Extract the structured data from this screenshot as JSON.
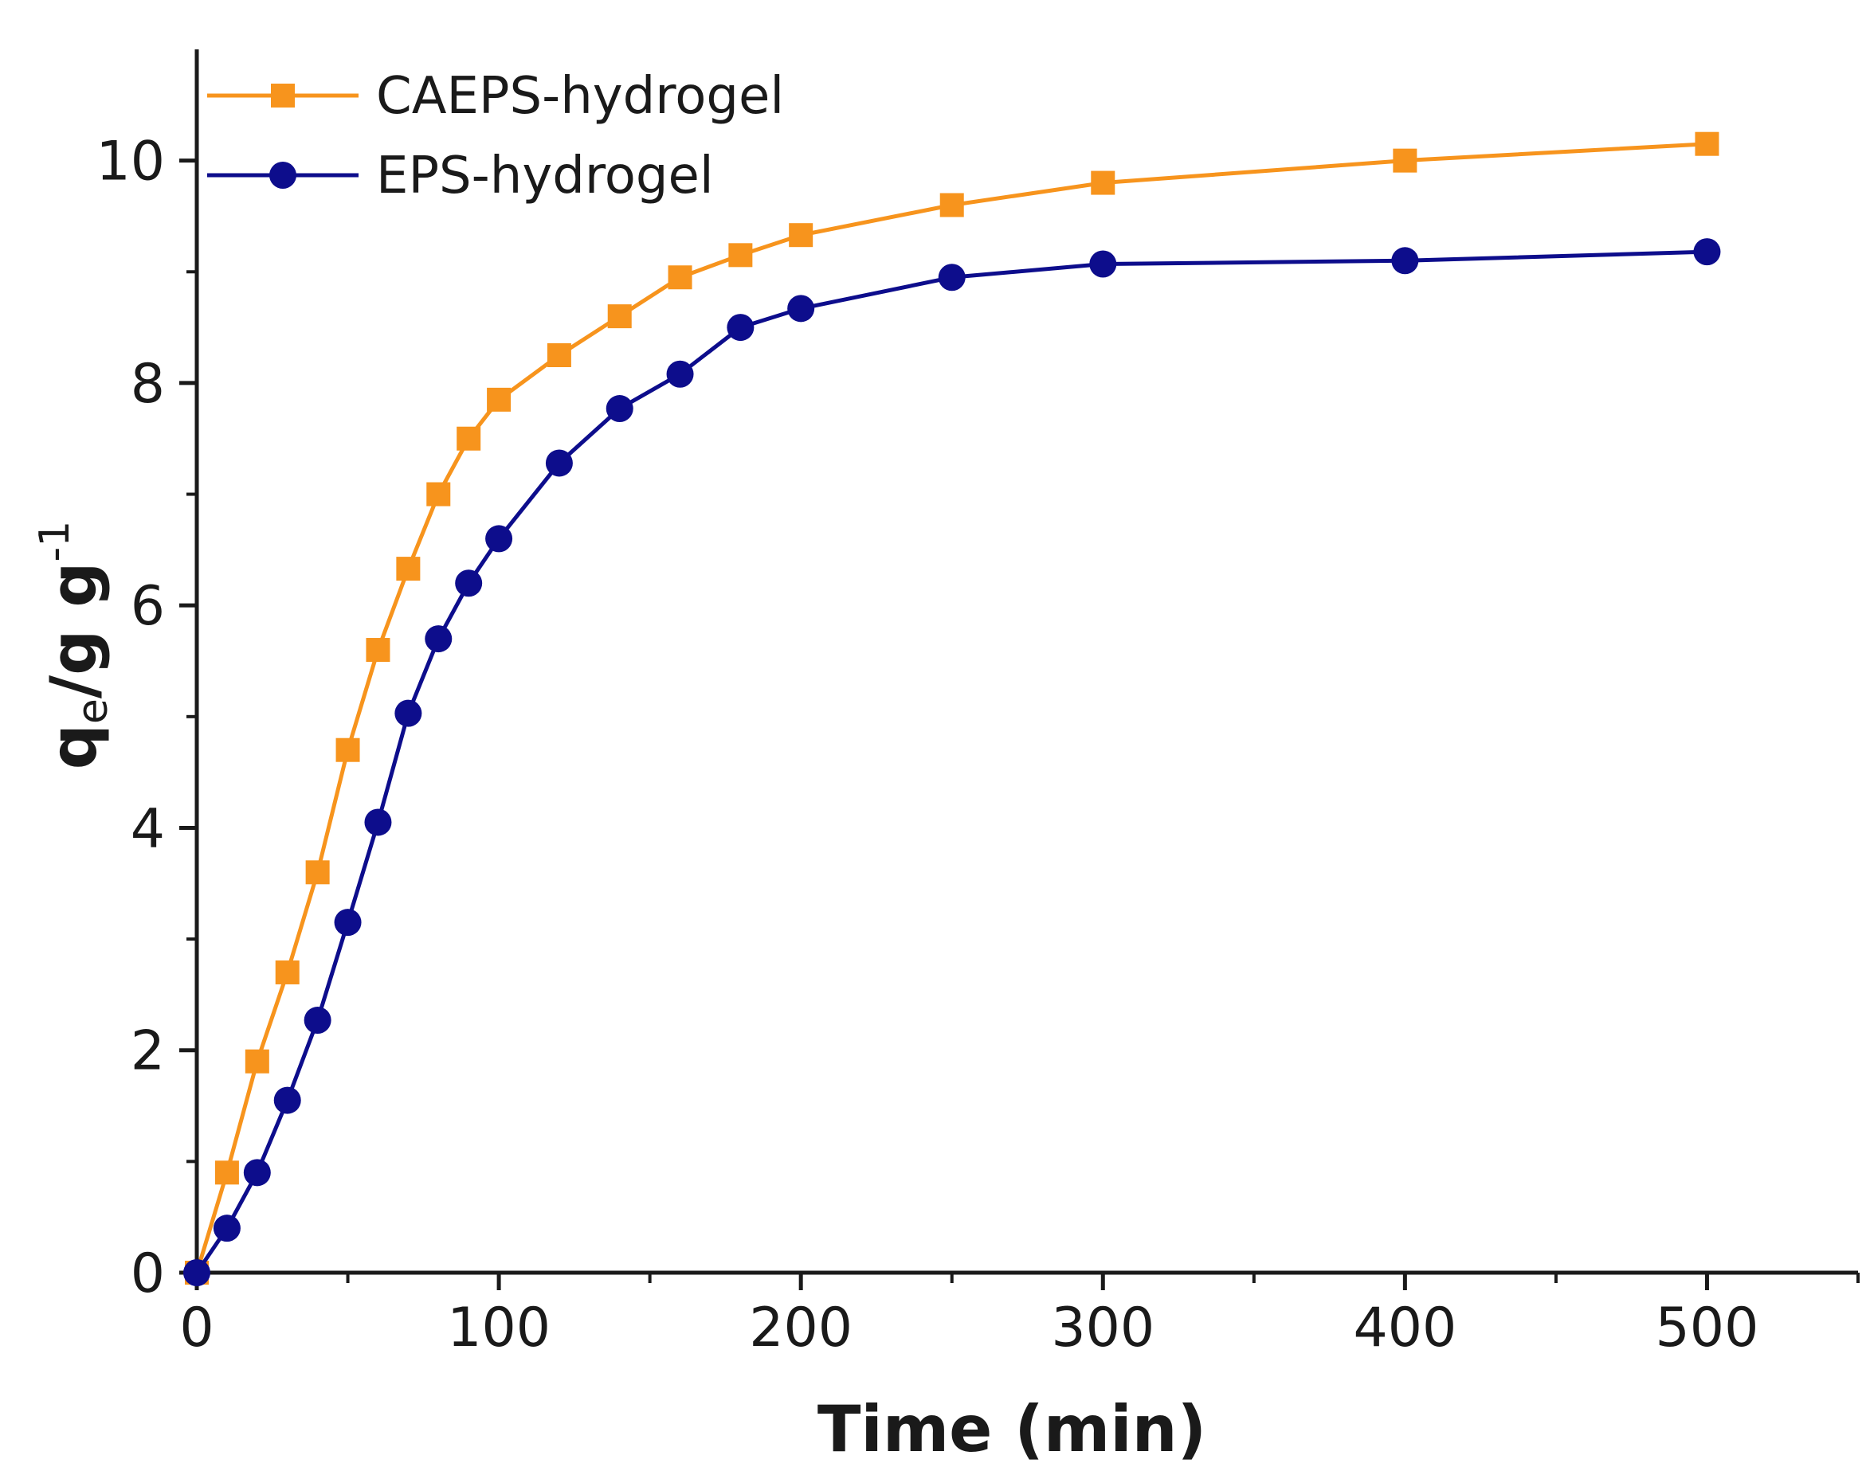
{
  "chart_data": {
    "type": "line",
    "title": "",
    "xlabel": "Time (min)",
    "ylabel": {
      "main": "q",
      "sub": "e",
      "unit": "/g g",
      "sup": "-1"
    },
    "xlim": [
      0,
      550
    ],
    "ylim": [
      0,
      11
    ],
    "xticks": [
      0,
      100,
      200,
      300,
      400,
      500
    ],
    "xminor": [
      50,
      150,
      250,
      350,
      450,
      550
    ],
    "yticks": [
      0,
      2,
      4,
      6,
      8,
      10
    ],
    "yminor": [
      1,
      3,
      5,
      7,
      9
    ],
    "grid": false,
    "legend_position": "top-left",
    "series": [
      {
        "name": "CAEPS-hydrogel",
        "color": "#f7941d",
        "marker": "square",
        "x": [
          0,
          10,
          20,
          30,
          40,
          50,
          60,
          70,
          80,
          90,
          100,
          120,
          140,
          160,
          180,
          200,
          250,
          300,
          400,
          500
        ],
        "y": [
          0,
          0.9,
          1.9,
          2.7,
          3.6,
          4.7,
          5.6,
          6.33,
          7.0,
          7.5,
          7.85,
          8.25,
          8.6,
          8.95,
          9.15,
          9.33,
          9.6,
          9.8,
          10.0,
          10.15
        ]
      },
      {
        "name": "EPS-hydrogel",
        "color": "#0d0d8c",
        "marker": "circle",
        "x": [
          0,
          10,
          20,
          30,
          40,
          50,
          60,
          70,
          80,
          90,
          100,
          120,
          140,
          160,
          180,
          200,
          250,
          300,
          400,
          500
        ],
        "y": [
          0,
          0.4,
          0.9,
          1.55,
          2.27,
          3.15,
          4.05,
          5.03,
          5.7,
          6.2,
          6.6,
          7.28,
          7.77,
          8.08,
          8.5,
          8.67,
          8.95,
          9.07,
          9.1,
          9.18
        ]
      }
    ]
  }
}
